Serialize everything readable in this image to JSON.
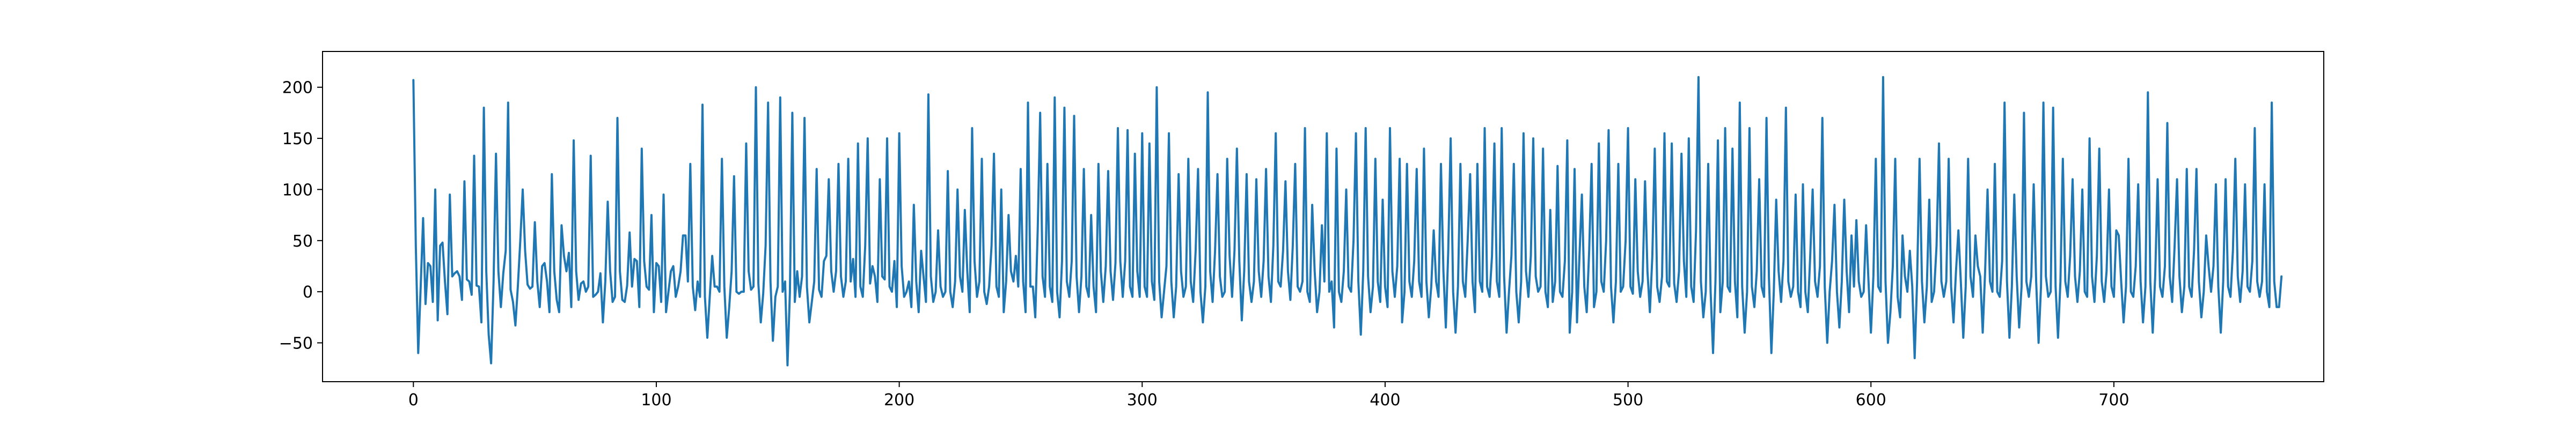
{
  "chart_data": {
    "type": "line",
    "title": "",
    "xlabel": "",
    "ylabel": "",
    "xlim": [
      -37.4,
      786.4
    ],
    "ylim": [
      -88,
      235
    ],
    "xticks": [
      0,
      100,
      200,
      300,
      400,
      500,
      600,
      700
    ],
    "yticks": [
      -50,
      0,
      50,
      100,
      150,
      200
    ],
    "grid": false,
    "legend": "none",
    "line_color": "#1f77b4",
    "series": [
      {
        "values": [
          207,
          45,
          -60,
          5,
          72,
          -12,
          28,
          25,
          -10,
          100,
          -28,
          45,
          48,
          10,
          -22,
          95,
          15,
          18,
          20,
          15,
          -8,
          108,
          12,
          10,
          -3,
          133,
          6,
          5,
          -30,
          180,
          20,
          -42,
          -70,
          10,
          135,
          20,
          -15,
          18,
          40,
          185,
          2,
          -10,
          -33,
          5,
          50,
          100,
          40,
          7,
          3,
          5,
          68,
          10,
          -15,
          25,
          28,
          10,
          -20,
          115,
          20,
          -8,
          -20,
          65,
          35,
          20,
          38,
          -15,
          148,
          20,
          -8,
          8,
          10,
          0,
          5,
          133,
          -5,
          -3,
          0,
          18,
          -30,
          10,
          88,
          20,
          -10,
          -5,
          170,
          20,
          -8,
          -10,
          6,
          58,
          5,
          32,
          30,
          -15,
          140,
          30,
          5,
          2,
          75,
          -20,
          28,
          25,
          -10,
          95,
          -20,
          0,
          20,
          25,
          -5,
          5,
          20,
          55,
          55,
          10,
          125,
          5,
          -18,
          10,
          -5,
          183,
          -5,
          -45,
          -5,
          35,
          5,
          5,
          0,
          130,
          5,
          -45,
          -15,
          20,
          113,
          0,
          -2,
          0,
          0,
          145,
          20,
          2,
          5,
          200,
          8,
          -30,
          -2,
          45,
          185,
          10,
          -48,
          -5,
          5,
          190,
          0,
          10,
          -72,
          0,
          175,
          -10,
          20,
          -5,
          15,
          170,
          5,
          -30,
          -10,
          10,
          120,
          2,
          -5,
          30,
          35,
          110,
          20,
          0,
          20,
          125,
          15,
          -5,
          10,
          130,
          10,
          32,
          -5,
          145,
          5,
          -5,
          45,
          150,
          8,
          25,
          15,
          -10,
          110,
          15,
          12,
          150,
          5,
          0,
          30,
          -15,
          155,
          25,
          -5,
          0,
          10,
          -15,
          85,
          10,
          -20,
          40,
          15,
          -10,
          193,
          15,
          -10,
          0,
          60,
          5,
          -5,
          0,
          118,
          0,
          -15,
          10,
          100,
          15,
          0,
          80,
          20,
          -20,
          160,
          30,
          -5,
          10,
          130,
          0,
          -12,
          5,
          45,
          135,
          5,
          -5,
          100,
          -20,
          10,
          75,
          20,
          10,
          35,
          5,
          120,
          10,
          -20,
          185,
          5,
          5,
          -25,
          60,
          175,
          15,
          -5,
          125,
          5,
          -10,
          190,
          0,
          -25,
          30,
          180,
          10,
          -5,
          30,
          172,
          15,
          -20,
          15,
          120,
          5,
          -5,
          75,
          5,
          -20,
          125,
          20,
          -10,
          25,
          118,
          20,
          -8,
          28,
          160,
          30,
          -5,
          30,
          158,
          5,
          -5,
          135,
          20,
          -5,
          155,
          5,
          -5,
          145,
          10,
          -8,
          200,
          10,
          -25,
          0,
          25,
          155,
          10,
          -25,
          5,
          115,
          20,
          -5,
          5,
          130,
          10,
          -10,
          40,
          120,
          0,
          -30,
          5,
          195,
          20,
          -10,
          40,
          115,
          15,
          -5,
          0,
          130,
          35,
          -5,
          40,
          140,
          30,
          -28,
          20,
          115,
          10,
          -10,
          10,
          110,
          20,
          -5,
          30,
          120,
          15,
          -10,
          45,
          155,
          10,
          5,
          40,
          108,
          20,
          -8,
          45,
          125,
          5,
          0,
          10,
          160,
          0,
          -10,
          85,
          20,
          -20,
          0,
          65,
          10,
          155,
          0,
          10,
          -35,
          140,
          0,
          -10,
          20,
          100,
          5,
          0,
          50,
          155,
          10,
          -42,
          20,
          160,
          15,
          -20,
          5,
          130,
          10,
          -10,
          90,
          5,
          -15,
          160,
          20,
          -5,
          25,
          130,
          -30,
          0,
          125,
          10,
          -5,
          30,
          120,
          10,
          -5,
          140,
          10,
          -25,
          5,
          60,
          10,
          -5,
          125,
          20,
          -35,
          40,
          150,
          0,
          -40,
          5,
          125,
          10,
          -5,
          50,
          115,
          10,
          -20,
          125,
          10,
          0,
          160,
          5,
          -5,
          35,
          145,
          10,
          -5,
          160,
          15,
          -40,
          0,
          35,
          125,
          0,
          -30,
          10,
          155,
          20,
          -5,
          35,
          150,
          15,
          0,
          5,
          140,
          0,
          -15,
          80,
          -10,
          10,
          123,
          0,
          -5,
          30,
          148,
          -40,
          0,
          120,
          -30,
          35,
          95,
          5,
          -20,
          40,
          125,
          -15,
          0,
          145,
          10,
          0,
          50,
          158,
          5,
          -30,
          10,
          125,
          0,
          5,
          50,
          160,
          5,
          -2,
          110,
          20,
          -5,
          10,
          108,
          20,
          -20,
          35,
          140,
          5,
          -10,
          15,
          155,
          10,
          5,
          145,
          8,
          -10,
          20,
          135,
          30,
          -5,
          150,
          5,
          -10,
          60,
          210,
          10,
          -25,
          0,
          125,
          0,
          -60,
          10,
          148,
          -20,
          10,
          160,
          5,
          0,
          140,
          10,
          -25,
          185,
          5,
          -40,
          0,
          160,
          5,
          -15,
          20,
          110,
          5,
          -5,
          170,
          15,
          -60,
          0,
          90,
          20,
          -10,
          30,
          180,
          10,
          -5,
          5,
          95,
          0,
          -15,
          105,
          0,
          -20,
          35,
          100,
          10,
          -5,
          25,
          170,
          5,
          -50,
          0,
          30,
          85,
          0,
          -35,
          10,
          90,
          20,
          -20,
          55,
          5,
          70,
          10,
          -5,
          0,
          65,
          10,
          -40,
          15,
          130,
          5,
          0,
          210,
          10,
          -50,
          -20,
          25,
          130,
          -5,
          -25,
          55,
          15,
          0,
          40,
          5,
          -65,
          10,
          130,
          10,
          -30,
          5,
          90,
          -10,
          0,
          45,
          145,
          10,
          -5,
          10,
          130,
          5,
          -30,
          20,
          60,
          10,
          -45,
          5,
          130,
          15,
          -5,
          55,
          25,
          15,
          -40,
          20,
          100,
          10,
          0,
          125,
          0,
          -5,
          30,
          185,
          10,
          -45,
          5,
          95,
          15,
          -35,
          5,
          175,
          10,
          -5,
          15,
          105,
          10,
          -50,
          5,
          185,
          15,
          -5,
          0,
          180,
          5,
          -45,
          10,
          130,
          10,
          -5,
          35,
          110,
          15,
          -10,
          20,
          100,
          0,
          -5,
          150,
          15,
          -10,
          35,
          140,
          10,
          -10,
          20,
          100,
          5,
          -5,
          60,
          55,
          10,
          -30,
          5,
          130,
          0,
          -5,
          25,
          105,
          10,
          -30,
          5,
          195,
          10,
          -40,
          15,
          110,
          5,
          -5,
          25,
          165,
          15,
          -10,
          45,
          110,
          15,
          -20,
          5,
          120,
          5,
          -5,
          40,
          120,
          10,
          -25,
          0,
          55,
          25,
          0,
          25,
          105,
          5,
          -40,
          10,
          110,
          5,
          -5,
          40,
          130,
          15,
          -10,
          20,
          105,
          5,
          0,
          30,
          160,
          10,
          -5,
          10,
          105,
          0,
          -15,
          185,
          10,
          -15,
          -15,
          15
        ]
      }
    ]
  }
}
